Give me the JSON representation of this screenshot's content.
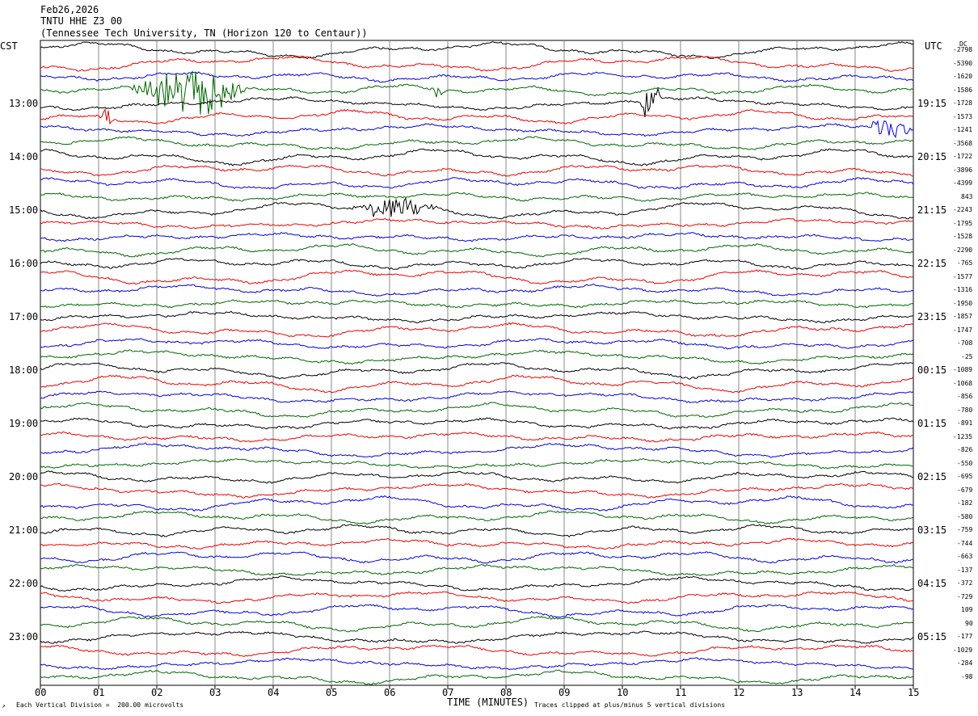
{
  "header": {
    "date": "Feb26,2026",
    "station": "TNTU HHE Z3 00",
    "location": "(Tennessee Tech University, TN (Horizon 120 to Centaur))"
  },
  "left_zone_label": "CST",
  "right_zone_label": "UTC",
  "dc_label": "DC",
  "footer": {
    "scale_note": "Each Vertical Division =  200.00 microvolts",
    "xlabel": "TIME (MINUTES)",
    "clip_note": "Traces clipped at plus/minus 5 vertical divisions"
  },
  "colors": {
    "black": "#000000",
    "red": "#ee0000",
    "blue": "#0000dd",
    "green": "#006600",
    "grid": "#888888"
  },
  "chart_data": {
    "type": "line",
    "title": "TNTU HHE Z3 00",
    "xlabel": "TIME (MINUTES)",
    "x_ticks": [
      "00",
      "01",
      "02",
      "03",
      "04",
      "05",
      "06",
      "07",
      "08",
      "09",
      "10",
      "11",
      "12",
      "13",
      "14",
      "15"
    ],
    "xlim": [
      0,
      15
    ],
    "trace_color_cycle": [
      "black",
      "red",
      "blue",
      "green"
    ],
    "left_hour_labels": [
      "13:00",
      "14:00",
      "15:00",
      "16:00",
      "17:00",
      "18:00",
      "19:00",
      "20:00",
      "21:00",
      "22:00",
      "23:00"
    ],
    "right_hour_labels": [
      "19:15",
      "20:15",
      "21:15",
      "22:15",
      "23:15",
      "00:15",
      "01:15",
      "02:15",
      "03:15",
      "04:15",
      "05:15"
    ],
    "dc_offsets": [
      "-2798",
      "-5390",
      "-1620",
      "-1586",
      "-1728",
      "-1573",
      "-1241",
      "-3568",
      "-1722",
      "-3896",
      "-4399",
      "843",
      "-2243",
      "-1795",
      "-1528",
      "-2290",
      "-765",
      "-1577",
      "-1316",
      "-1950",
      "-1857",
      "-1747",
      "-708",
      "-25",
      "-1089",
      "-1068",
      "-856",
      "-780",
      "-891",
      "-1235",
      "-826",
      "-550",
      "-695",
      "-679",
      "-182",
      "-580",
      "-759",
      "-744",
      "-663",
      "-137",
      "-372",
      "-729",
      "109",
      "90",
      "-177",
      "-1029",
      "-284",
      "-98"
    ],
    "events": [
      {
        "trace": 3,
        "start_min": 1.5,
        "end_min": 3.6,
        "amplitude": "large"
      },
      {
        "trace": 5,
        "start_min": 1.0,
        "end_min": 1.3,
        "amplitude": "medium"
      },
      {
        "trace": 4,
        "start_min": 10.3,
        "end_min": 10.7,
        "amplitude": "large"
      },
      {
        "trace": 6,
        "start_min": 14.2,
        "end_min": 15.0,
        "amplitude": "medium"
      },
      {
        "trace": 12,
        "start_min": 5.3,
        "end_min": 6.9,
        "amplitude": "medium"
      },
      {
        "trace": 3,
        "start_min": 6.7,
        "end_min": 7.0,
        "amplitude": "medium"
      }
    ]
  }
}
